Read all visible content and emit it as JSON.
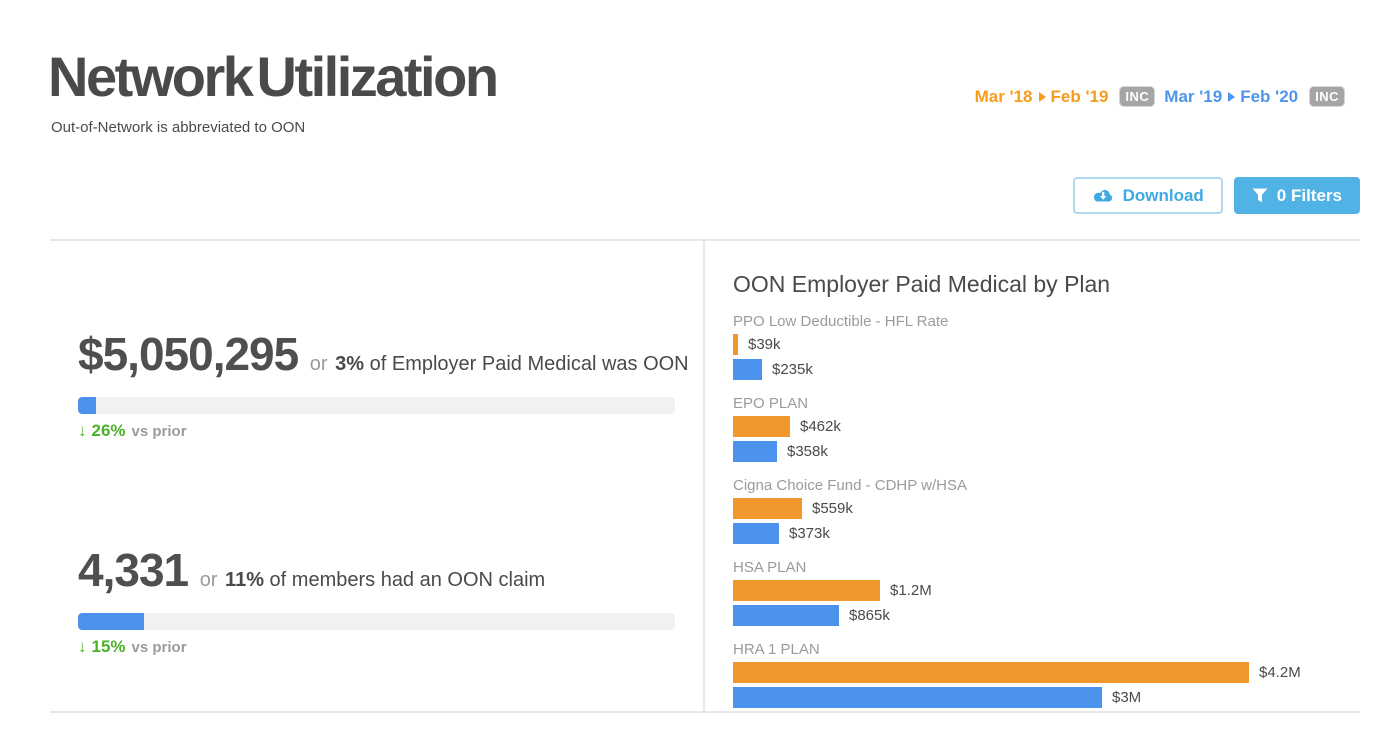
{
  "header": {
    "title": "Network Utilization",
    "subtitle": "Out-of-Network is abbreviated to OON"
  },
  "periods": [
    {
      "start": "Mar '18",
      "end": "Feb '19",
      "badge": "INC",
      "color": "#F79C1D"
    },
    {
      "start": "Mar '19",
      "end": "Feb '20",
      "badge": "INC",
      "color": "#4D95F0"
    }
  ],
  "toolbar": {
    "download": "Download",
    "filters": "0 Filters"
  },
  "stats": [
    {
      "value": "$5,050,295",
      "conjunction": "or",
      "percent": "3%",
      "description": "of Employer Paid Medical was OON",
      "bar_percent": 3,
      "delta_arrow": "↓",
      "delta_percent": "26%",
      "delta_suffix": "vs prior"
    },
    {
      "value": "4,331",
      "conjunction": "or",
      "percent": "11%",
      "description": "of members had an OON claim",
      "bar_percent": 11,
      "delta_arrow": "↓",
      "delta_percent": "15%",
      "delta_suffix": "vs prior"
    }
  ],
  "chart_data": {
    "type": "bar",
    "orientation": "horizontal",
    "title": "OON Employer Paid Medical by Plan",
    "categories": [
      "PPO Low Deductible - HFL Rate",
      "EPO PLAN",
      "Cigna Choice Fund - CDHP w/HSA",
      "HSA PLAN",
      "HRA 1 PLAN"
    ],
    "series": [
      {
        "name": "Mar '18 - Feb '19",
        "color": "#F0982E",
        "values": [
          39000,
          462000,
          559000,
          1200000,
          4200000
        ],
        "labels": [
          "$39k",
          "$462k",
          "$559k",
          "$1.2M",
          "$4.2M"
        ]
      },
      {
        "name": "Mar '19 - Feb '20",
        "color": "#4C93EE",
        "values": [
          235000,
          358000,
          373000,
          865000,
          3000000
        ],
        "labels": [
          "$235k",
          "$358k",
          "$373k",
          "$865k",
          "$3M"
        ]
      }
    ],
    "xmax": 4200000,
    "grid": false,
    "legend": "none",
    "value_labels": "outside-end"
  },
  "colors": {
    "accent_orange": "#F0982E",
    "accent_blue": "#4C93EE",
    "button_blue": "#50B2E5",
    "download_blue": "#3FA9E2",
    "green_positive": "#49B227",
    "gray_label": "#9B9B9B",
    "text_dark": "#4A4A4A",
    "rule_gray": "#E8E8E8",
    "badge_gray": "#A5A5A5"
  }
}
